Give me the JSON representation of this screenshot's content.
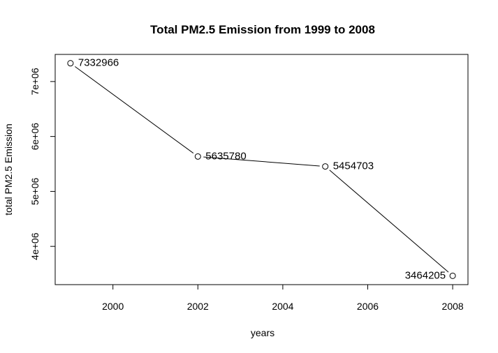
{
  "chart_data": {
    "type": "line",
    "title": "Total PM2.5 Emission from 1999 to 2008",
    "xlabel": "years",
    "ylabel": "total PM2.5 Emission",
    "x": [
      1999,
      2002,
      2005,
      2008
    ],
    "series": [
      {
        "values": [
          7332966,
          5635780,
          5454703,
          3464205
        ]
      }
    ],
    "data_labels": [
      "7332966",
      "5635780",
      "5454703",
      "3464205"
    ],
    "xlim": [
      1998.64,
      2008.36
    ],
    "ylim": [
      3303775,
      7493396
    ],
    "xticks": [
      2000,
      2002,
      2004,
      2006,
      2008
    ],
    "xtick_labels": [
      "2000",
      "2002",
      "2004",
      "2006",
      "2008"
    ],
    "yticks": [
      4000000,
      5000000,
      6000000,
      7000000
    ],
    "ytick_labels": [
      "4e+06",
      "5e+06",
      "6e+06",
      "7e+06"
    ],
    "grid": false,
    "line_color": "#000000",
    "marker": "open-circle"
  }
}
